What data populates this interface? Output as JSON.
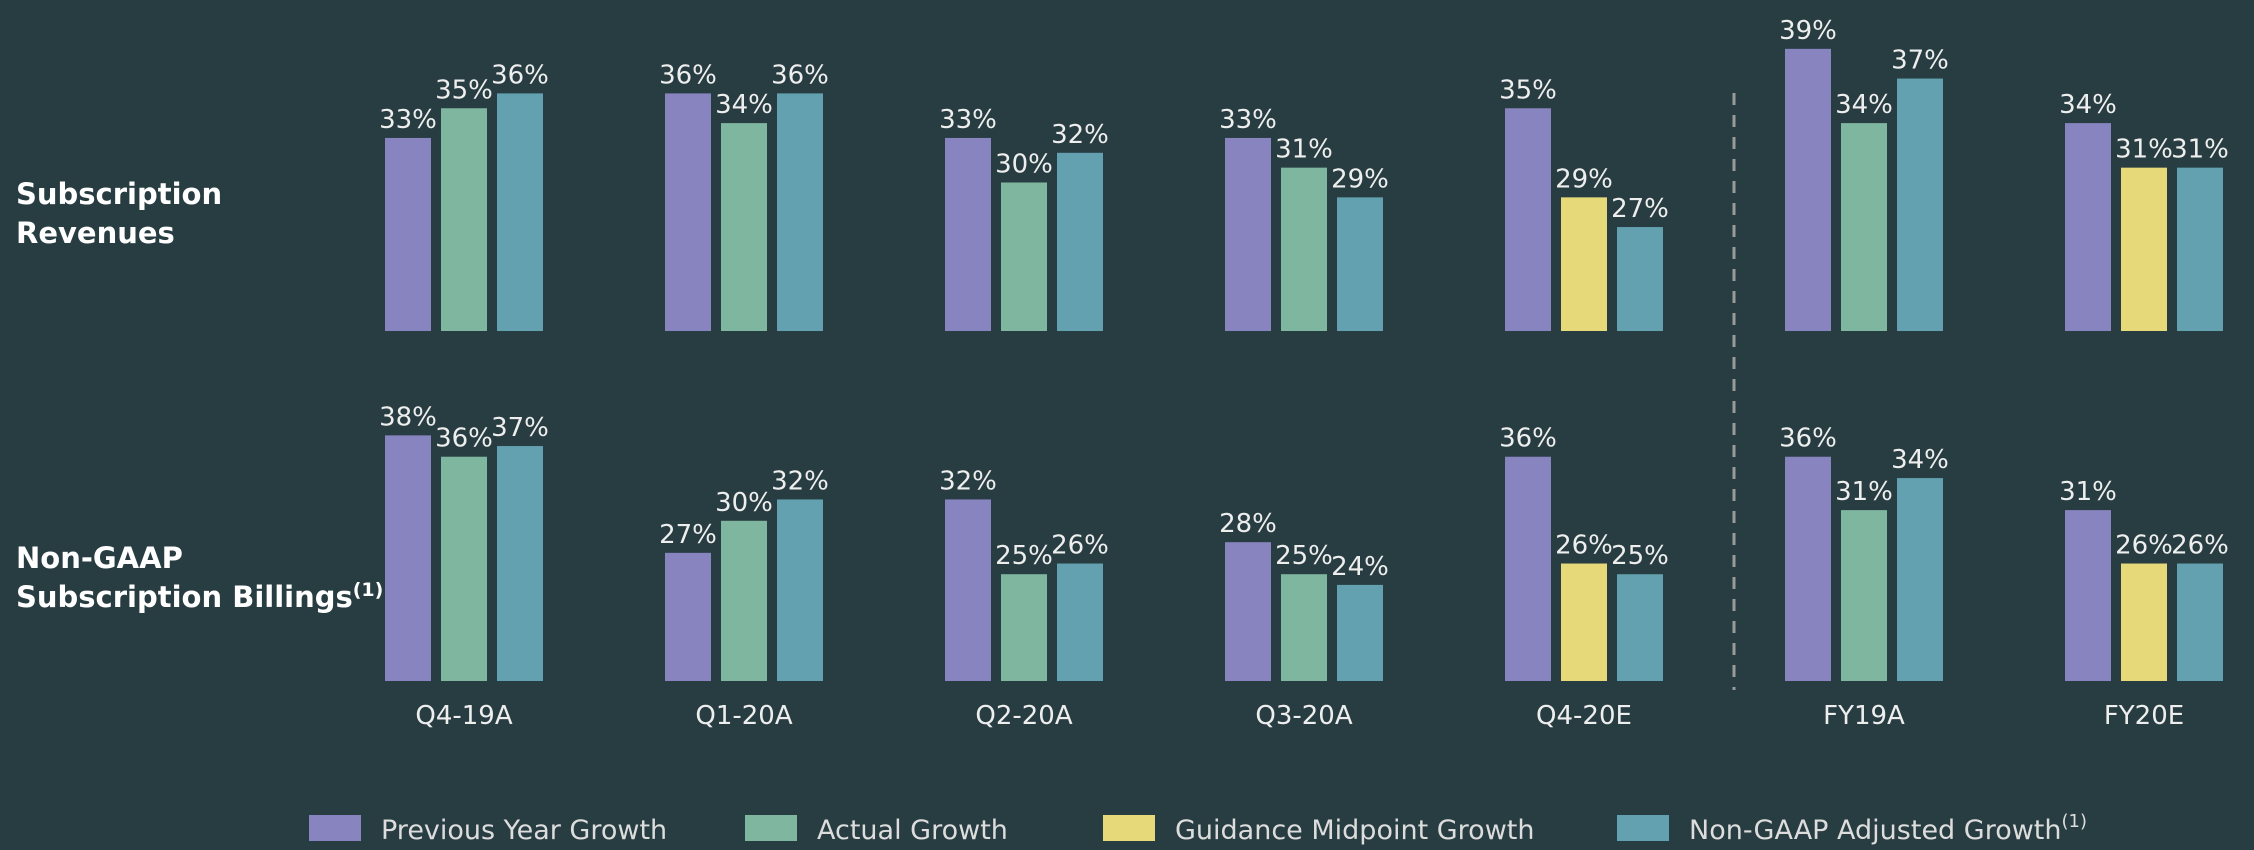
{
  "chart_data": {
    "type": "bar",
    "categories": [
      "Q4-19A",
      "Q1-20A",
      "Q2-20A",
      "Q3-20A",
      "Q4-20E",
      "FY19A",
      "FY20E"
    ],
    "series": [
      {
        "name": "Previous Year Growth",
        "color": "#8784c0"
      },
      {
        "name": "Actual Growth",
        "color": "#7fb6a0"
      },
      {
        "name": "Guidance Midpoint Growth",
        "color": "#e5d97a"
      },
      {
        "name": "Non-GAAP Adjusted Growth",
        "color": "#63a0b0",
        "footnote": "(1)"
      }
    ],
    "panels": [
      {
        "title": [
          "Subscription",
          "Revenues"
        ],
        "ylim": [
          20,
          40
        ],
        "values": [
          [
            33,
            36,
            33,
            33,
            35,
            39,
            34
          ],
          [
            35,
            34,
            30,
            31,
            null,
            34,
            null
          ],
          [
            null,
            null,
            null,
            null,
            29,
            null,
            31
          ],
          [
            36,
            36,
            32,
            29,
            27,
            37,
            31
          ]
        ],
        "value_labels": [
          [
            "33%",
            "36%",
            "33%",
            "33%",
            "35%",
            "39%",
            "34%"
          ],
          [
            "35%",
            "34%",
            "30%",
            "31%",
            null,
            "34%",
            null
          ],
          [
            null,
            null,
            null,
            null,
            "29%",
            null,
            "31%"
          ],
          [
            "36%",
            "36%",
            "32%",
            "29%",
            "27%",
            "37%",
            "31%"
          ]
        ]
      },
      {
        "title": [
          "Non-GAAP",
          "Subscription Billings"
        ],
        "title_footnote": "(1)",
        "ylim": [
          15,
          40
        ],
        "values": [
          [
            38,
            27,
            32,
            28,
            36,
            36,
            31
          ],
          [
            36,
            30,
            25,
            25,
            null,
            31,
            null
          ],
          [
            null,
            null,
            null,
            null,
            26,
            null,
            26
          ],
          [
            37,
            32,
            26,
            24,
            25,
            34,
            26
          ]
        ],
        "value_labels": [
          [
            "38%",
            "27%",
            "32%",
            "28%",
            "36%",
            "36%",
            "31%"
          ],
          [
            "36%",
            "30%",
            "25%",
            "25%",
            null,
            "31%",
            null
          ],
          [
            null,
            null,
            null,
            null,
            "26%",
            null,
            "26%"
          ],
          [
            "37%",
            "32%",
            "26%",
            "24%",
            "25%",
            "34%",
            "26%"
          ]
        ]
      }
    ]
  }
}
